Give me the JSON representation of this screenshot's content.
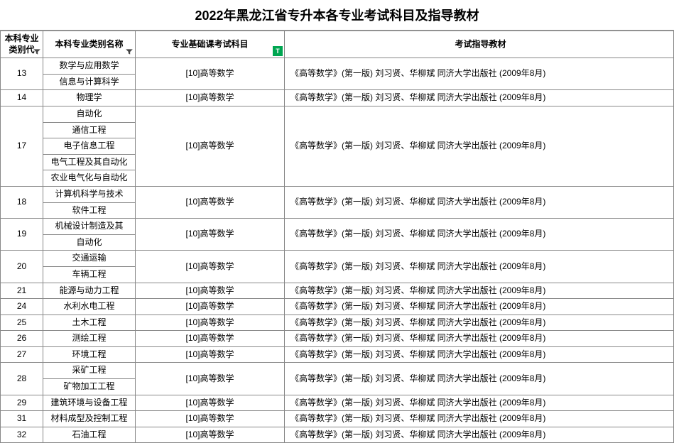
{
  "title": "2022年黑龙江省专升本各专业考试科目及指导教材",
  "headers": {
    "code": "本科专业类别代",
    "name": "本科专业类别名称",
    "subject": "专业基础课考试科目",
    "book": "考试指导教材"
  },
  "subject_label": "[10]高等数学",
  "book_label": "《高等数学》(第一版) 刘习贤、华柳斌  同济大学出版社 (2009年8月)",
  "groups": [
    {
      "code": "13",
      "majors": [
        "数学与应用数学",
        "信息与计算科学"
      ]
    },
    {
      "code": "14",
      "majors": [
        "物理学"
      ]
    },
    {
      "code": "17",
      "majors": [
        "自动化",
        "通信工程",
        "电子信息工程",
        "电气工程及其自动化",
        "农业电气化与自动化"
      ]
    },
    {
      "code": "18",
      "majors": [
        "计算机科学与技术",
        "软件工程"
      ]
    },
    {
      "code": "19",
      "majors": [
        "机械设计制造及其",
        "自动化"
      ]
    },
    {
      "code": "20",
      "majors": [
        "交通运输",
        "车辆工程"
      ]
    },
    {
      "code": "21",
      "majors": [
        "能源与动力工程"
      ]
    },
    {
      "code": "24",
      "majors": [
        "水利水电工程"
      ]
    },
    {
      "code": "25",
      "majors": [
        "土木工程"
      ]
    },
    {
      "code": "26",
      "majors": [
        "测绘工程"
      ]
    },
    {
      "code": "27",
      "majors": [
        "环境工程"
      ]
    },
    {
      "code": "28",
      "majors": [
        "采矿工程",
        "矿物加工工程"
      ]
    },
    {
      "code": "29",
      "majors": [
        "建筑环境与设备工程"
      ]
    },
    {
      "code": "31",
      "majors": [
        "材料成型及控制工程"
      ]
    },
    {
      "code": "32",
      "majors": [
        "石油工程"
      ]
    }
  ],
  "colors": {
    "border": "#888888",
    "text": "#000000",
    "flag_bg": "#00a651"
  }
}
